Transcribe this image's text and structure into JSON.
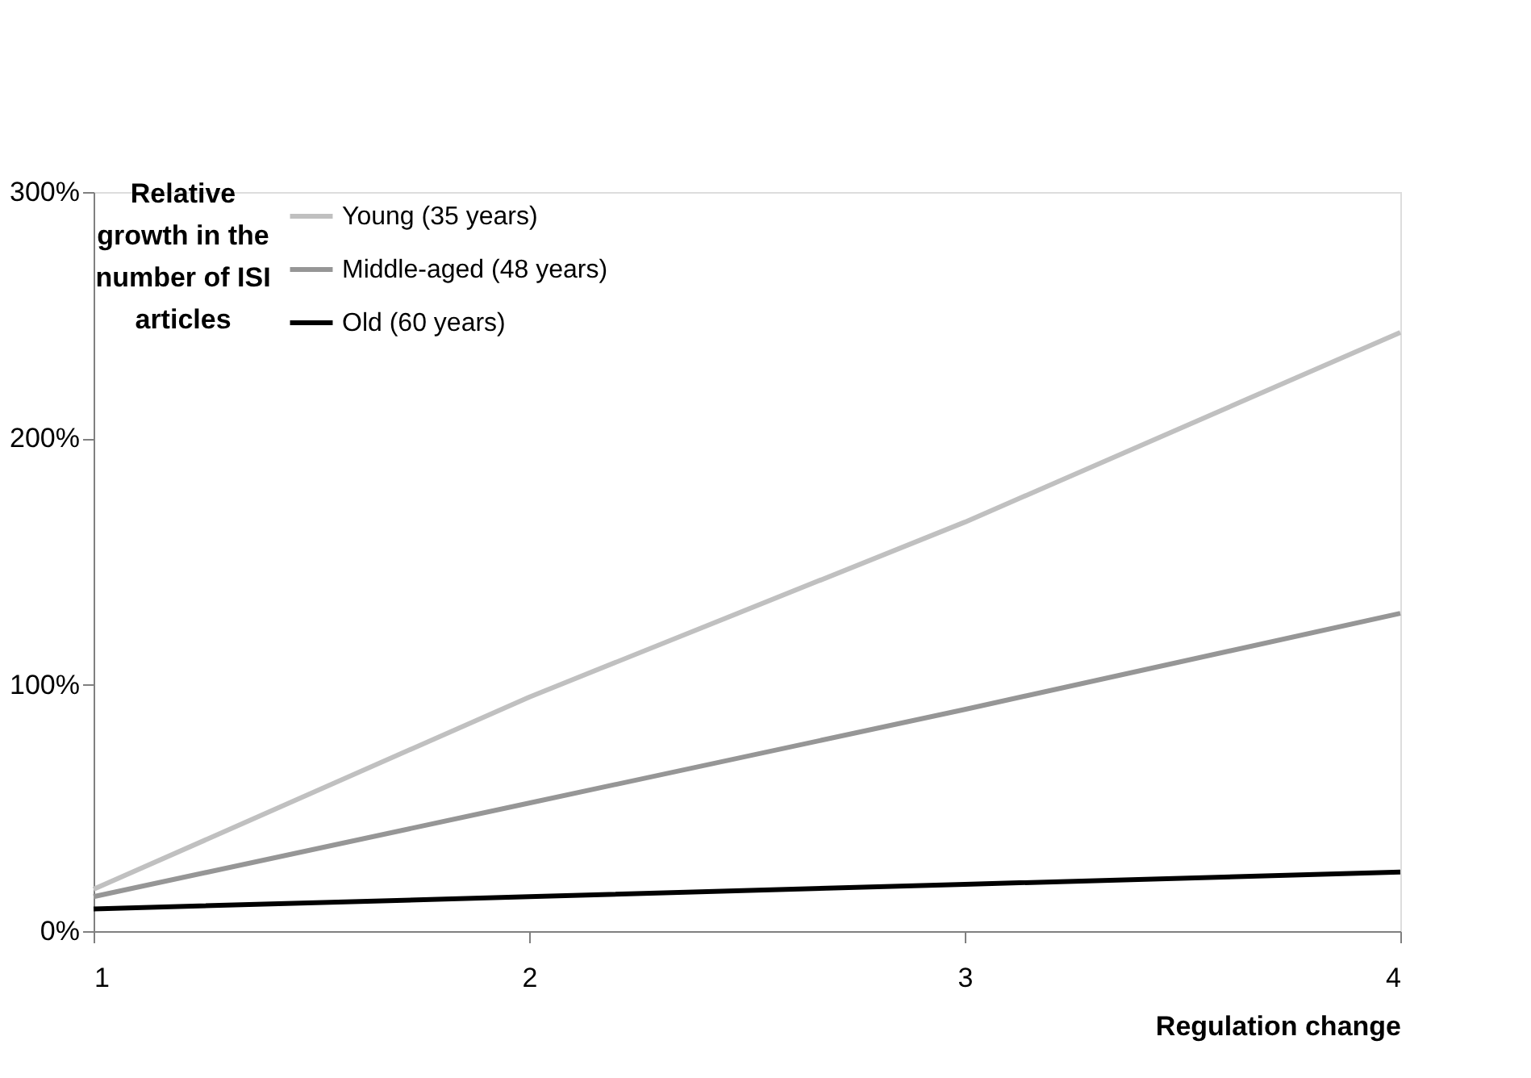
{
  "chart_data": {
    "type": "line",
    "xlabel": "Regulation change",
    "ylabel": "Relative growth in the number of ISI articles",
    "x": [
      1,
      2,
      3,
      4
    ],
    "series": [
      {
        "name": "Young (35 years)",
        "color": "#c0c0c0",
        "values": [
          17,
          95,
          166,
          243
        ]
      },
      {
        "name": "Middle-aged (48 years)",
        "color": "#969696",
        "values": [
          14,
          52,
          90,
          129
        ]
      },
      {
        "name": "Old (60 years)",
        "color": "#000000",
        "values": [
          9,
          14,
          19,
          24
        ]
      }
    ],
    "xlim": [
      1,
      4
    ],
    "xticks": [
      1,
      2,
      3,
      4
    ],
    "ylim": [
      0,
      300
    ],
    "yticks": [
      {
        "value": 0,
        "label": "0%"
      },
      {
        "value": 100,
        "label": "100%"
      },
      {
        "value": 200,
        "label": "200%"
      },
      {
        "value": 300,
        "label": "300%"
      }
    ],
    "grid": false,
    "legend": "top left",
    "marker": "none",
    "line_style": "solid"
  }
}
